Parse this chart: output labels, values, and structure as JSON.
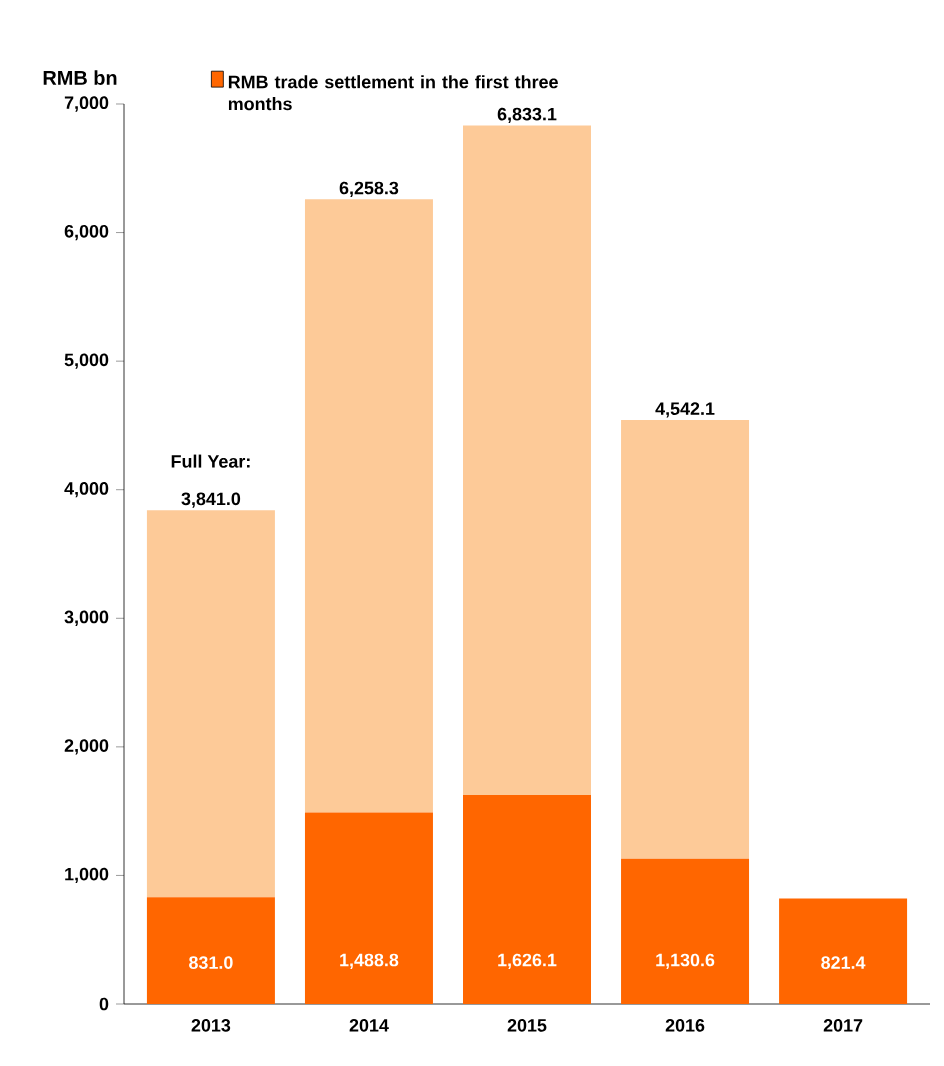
{
  "chart_data": {
    "type": "bar",
    "stacked": true,
    "ylabel": "RMB bn",
    "categories": [
      "2013",
      "2014",
      "2015",
      "2016",
      "2017"
    ],
    "series": [
      {
        "name": "RMB trade settlement in the first three months",
        "color": "#ff6600",
        "values": [
          831.0,
          1488.8,
          1626.1,
          1130.6,
          821.4
        ],
        "value_labels": [
          "831.0",
          "1,488.8",
          "1,626.1",
          "1,130.6",
          "821.4"
        ]
      },
      {
        "color": "#fdca98",
        "values": [
          3010.0,
          4769.5,
          5207.0,
          3411.5,
          null
        ]
      }
    ],
    "totals": [
      "3,841.0",
      "6,258.3",
      "6,833.1",
      "4,542.1",
      null
    ],
    "annotations": [
      "Full Year:"
    ],
    "ylim": [
      0,
      7000
    ],
    "yticks": [
      0,
      {
        "value": 1000,
        "label": "1,000"
      },
      {
        "value": 2000,
        "label": "2,000"
      },
      {
        "value": 3000,
        "label": "3,000"
      },
      {
        "value": 4000,
        "label": "4,000"
      },
      {
        "value": 5000,
        "label": "5,000"
      },
      {
        "value": 6000,
        "label": "6,000"
      },
      {
        "value": 7000,
        "label": "7,000"
      }
    ],
    "grid": false,
    "legend": "top"
  }
}
